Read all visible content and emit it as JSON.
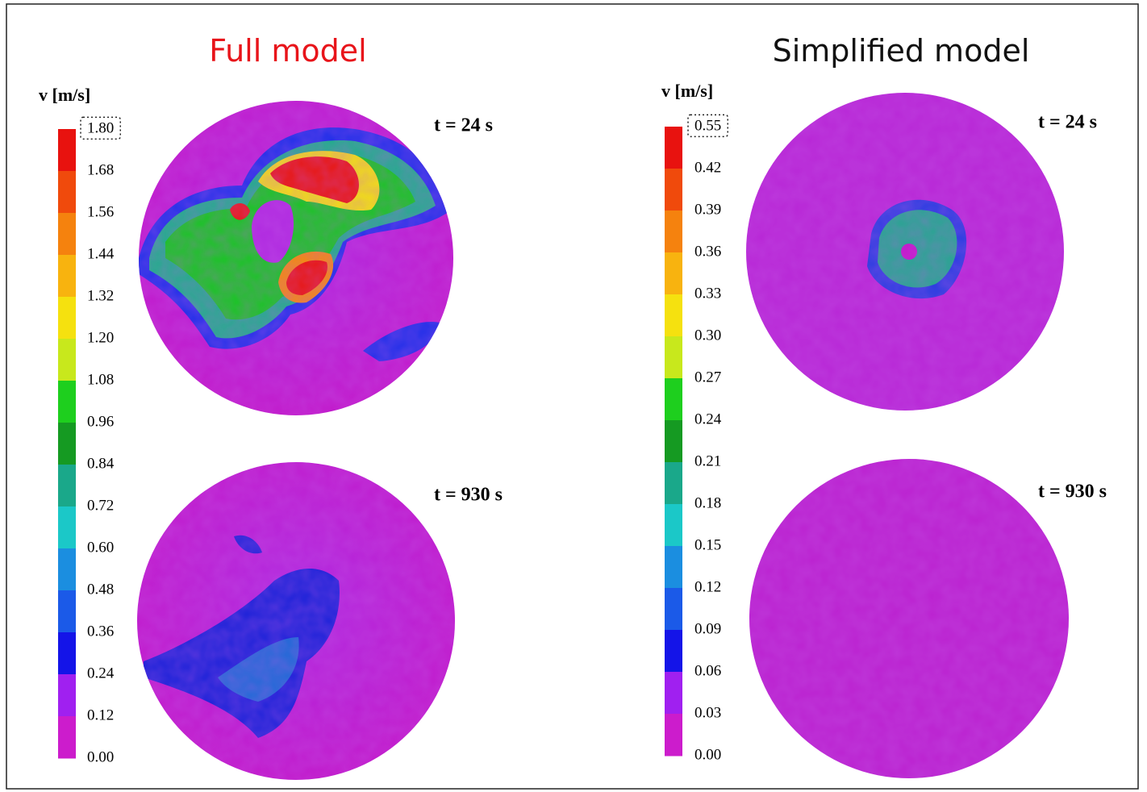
{
  "panels": [
    {
      "title": "Full model",
      "colorbar": {
        "label": "v [m/s]",
        "ticks": [
          "1.80",
          "1.68",
          "1.56",
          "1.44",
          "1.32",
          "1.20",
          "1.08",
          "0.96",
          "0.84",
          "0.72",
          "0.60",
          "0.48",
          "0.36",
          "0.24",
          "0.12",
          "0.00"
        ]
      },
      "plots": [
        {
          "time": "t = 24 s"
        },
        {
          "time": "t = 930 s"
        }
      ]
    },
    {
      "title": "Simplified model",
      "colorbar": {
        "label": "v [m/s]",
        "ticks": [
          "0.55",
          "0.42",
          "0.39",
          "0.36",
          "0.33",
          "0.30",
          "0.27",
          "0.24",
          "0.21",
          "0.18",
          "0.15",
          "0.12",
          "0.09",
          "0.06",
          "0.03",
          "0.00"
        ]
      },
      "plots": [
        {
          "time": "t = 24 s"
        },
        {
          "time": "t = 930 s"
        }
      ]
    }
  ]
}
